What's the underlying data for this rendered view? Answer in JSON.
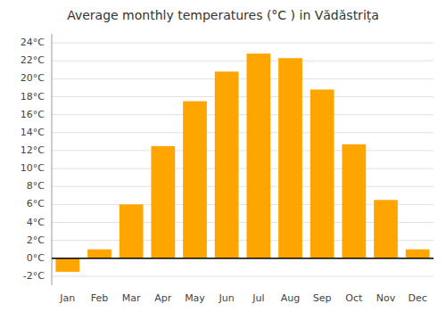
{
  "chart_data": {
    "type": "bar",
    "title": "Average monthly temperatures (°C ) in Vădăstrița",
    "categories": [
      "Jan",
      "Feb",
      "Mar",
      "Apr",
      "May",
      "Jun",
      "Jul",
      "Aug",
      "Sep",
      "Oct",
      "Nov",
      "Dec"
    ],
    "values": [
      -1.5,
      1.0,
      6.0,
      12.5,
      17.5,
      20.8,
      22.8,
      22.3,
      18.8,
      12.7,
      6.5,
      1.0
    ],
    "color": "#FFA500",
    "ylim": [
      -3,
      25
    ],
    "yticks": [
      {
        "value": -2,
        "label": "-2°C"
      },
      {
        "value": 0,
        "label": "0°C"
      },
      {
        "value": 2,
        "label": "2°C"
      },
      {
        "value": 4,
        "label": "4°C"
      },
      {
        "value": 6,
        "label": "6°C"
      },
      {
        "value": 8,
        "label": "8°C"
      },
      {
        "value": 10,
        "label": "10°C"
      },
      {
        "value": 12,
        "label": "12°C"
      },
      {
        "value": 14,
        "label": "14°C"
      },
      {
        "value": 16,
        "label": "16°C"
      },
      {
        "value": 18,
        "label": "18°C"
      },
      {
        "value": 20,
        "label": "20°C"
      },
      {
        "value": 22,
        "label": "22°C"
      },
      {
        "value": 24,
        "label": "24°C"
      }
    ],
    "grid": true
  }
}
